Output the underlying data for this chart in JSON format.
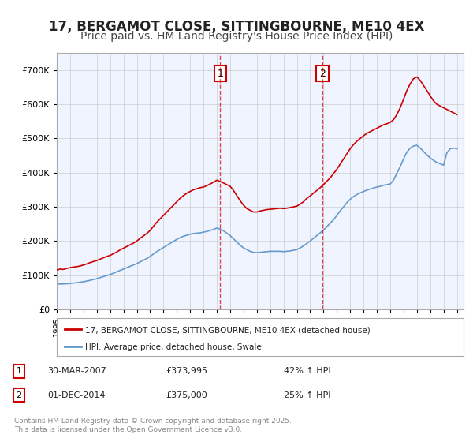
{
  "title": "17, BERGAMOT CLOSE, SITTINGBOURNE, ME10 4EX",
  "subtitle": "Price paid vs. HM Land Registry's House Price Index (HPI)",
  "title_fontsize": 12,
  "subtitle_fontsize": 10,
  "ylabel": "",
  "ylim": [
    0,
    750000
  ],
  "yticks": [
    0,
    100000,
    200000,
    300000,
    400000,
    500000,
    600000,
    700000
  ],
  "ytick_labels": [
    "£0",
    "£100K",
    "£200K",
    "£300K",
    "£400K",
    "£500K",
    "£600K",
    "£700K"
  ],
  "background_color": "#ffffff",
  "plot_bg_color": "#f0f4ff",
  "grid_color": "#cccccc",
  "red_line_color": "#cc0000",
  "blue_line_color": "#6699cc",
  "legend_red_label": "17, BERGAMOT CLOSE, SITTINGBOURNE, ME10 4EX (detached house)",
  "legend_blue_label": "HPI: Average price, detached house, Swale",
  "annotation1_date": "30-MAR-2007",
  "annotation1_price": "£373,995",
  "annotation1_hpi": "42% ↑ HPI",
  "annotation2_date": "01-DEC-2014",
  "annotation2_price": "£375,000",
  "annotation2_hpi": "25% ↑ HPI",
  "vline1_x": 2007.25,
  "vline2_x": 2014.92,
  "footer": "Contains HM Land Registry data © Crown copyright and database right 2025.\nThis data is licensed under the Open Government Licence v3.0.",
  "xmin": 1995,
  "xmax": 2025.5,
  "red_x": [
    1995.0,
    1995.25,
    1995.5,
    1995.75,
    1996.0,
    1996.25,
    1996.5,
    1996.75,
    1997.0,
    1997.25,
    1997.5,
    1997.75,
    1998.0,
    1998.25,
    1998.5,
    1998.75,
    1999.0,
    1999.25,
    1999.5,
    1999.75,
    2000.0,
    2000.25,
    2000.5,
    2000.75,
    2001.0,
    2001.25,
    2001.5,
    2001.75,
    2002.0,
    2002.25,
    2002.5,
    2002.75,
    2003.0,
    2003.25,
    2003.5,
    2003.75,
    2004.0,
    2004.25,
    2004.5,
    2004.75,
    2005.0,
    2005.25,
    2005.5,
    2005.75,
    2006.0,
    2006.25,
    2006.5,
    2006.75,
    2007.0,
    2007.25,
    2007.5,
    2007.75,
    2008.0,
    2008.25,
    2008.5,
    2008.75,
    2009.0,
    2009.25,
    2009.5,
    2009.75,
    2010.0,
    2010.25,
    2010.5,
    2010.75,
    2011.0,
    2011.25,
    2011.5,
    2011.75,
    2012.0,
    2012.25,
    2012.5,
    2012.75,
    2013.0,
    2013.25,
    2013.5,
    2013.75,
    2014.0,
    2014.25,
    2014.5,
    2014.75,
    2015.0,
    2015.25,
    2015.5,
    2015.75,
    2016.0,
    2016.25,
    2016.5,
    2016.75,
    2017.0,
    2017.25,
    2017.5,
    2017.75,
    2018.0,
    2018.25,
    2018.5,
    2018.75,
    2019.0,
    2019.25,
    2019.5,
    2019.75,
    2020.0,
    2020.25,
    2020.5,
    2020.75,
    2021.0,
    2021.25,
    2021.5,
    2021.75,
    2022.0,
    2022.25,
    2022.5,
    2022.75,
    2023.0,
    2023.25,
    2023.5,
    2023.75,
    2024.0,
    2024.25,
    2024.5,
    2024.75,
    2025.0
  ],
  "red_y": [
    115000,
    118000,
    117000,
    120000,
    122000,
    124000,
    125000,
    127000,
    130000,
    133000,
    137000,
    140000,
    143000,
    147000,
    151000,
    155000,
    158000,
    163000,
    168000,
    174000,
    179000,
    184000,
    189000,
    194000,
    200000,
    208000,
    215000,
    222000,
    231000,
    243000,
    255000,
    265000,
    275000,
    285000,
    295000,
    305000,
    315000,
    325000,
    333000,
    340000,
    345000,
    350000,
    353000,
    356000,
    358000,
    362000,
    367000,
    372000,
    378000,
    374000,
    370000,
    365000,
    360000,
    348000,
    333000,
    318000,
    305000,
    295000,
    290000,
    285000,
    285000,
    288000,
    290000,
    292000,
    293000,
    294000,
    295000,
    296000,
    295000,
    296000,
    298000,
    300000,
    302000,
    308000,
    315000,
    325000,
    332000,
    340000,
    348000,
    356000,
    365000,
    375000,
    385000,
    397000,
    410000,
    425000,
    440000,
    455000,
    470000,
    482000,
    492000,
    500000,
    508000,
    515000,
    520000,
    525000,
    530000,
    535000,
    540000,
    543000,
    547000,
    555000,
    570000,
    590000,
    615000,
    640000,
    660000,
    675000,
    680000,
    670000,
    655000,
    640000,
    625000,
    610000,
    600000,
    595000,
    590000,
    585000,
    580000,
    575000,
    570000
  ],
  "blue_x": [
    1995.0,
    1995.25,
    1995.5,
    1995.75,
    1996.0,
    1996.25,
    1996.5,
    1996.75,
    1997.0,
    1997.25,
    1997.5,
    1997.75,
    1998.0,
    1998.25,
    1998.5,
    1998.75,
    1999.0,
    1999.25,
    1999.5,
    1999.75,
    2000.0,
    2000.25,
    2000.5,
    2000.75,
    2001.0,
    2001.25,
    2001.5,
    2001.75,
    2002.0,
    2002.25,
    2002.5,
    2002.75,
    2003.0,
    2003.25,
    2003.5,
    2003.75,
    2004.0,
    2004.25,
    2004.5,
    2004.75,
    2005.0,
    2005.25,
    2005.5,
    2005.75,
    2006.0,
    2006.25,
    2006.5,
    2006.75,
    2007.0,
    2007.25,
    2007.5,
    2007.75,
    2008.0,
    2008.25,
    2008.5,
    2008.75,
    2009.0,
    2009.25,
    2009.5,
    2009.75,
    2010.0,
    2010.25,
    2010.5,
    2010.75,
    2011.0,
    2011.25,
    2011.5,
    2011.75,
    2012.0,
    2012.25,
    2012.5,
    2012.75,
    2013.0,
    2013.25,
    2013.5,
    2013.75,
    2014.0,
    2014.25,
    2014.5,
    2014.75,
    2015.0,
    2015.25,
    2015.5,
    2015.75,
    2016.0,
    2016.25,
    2016.5,
    2016.75,
    2017.0,
    2017.25,
    2017.5,
    2017.75,
    2018.0,
    2018.25,
    2018.5,
    2018.75,
    2019.0,
    2019.25,
    2019.5,
    2019.75,
    2020.0,
    2020.25,
    2020.5,
    2020.75,
    2021.0,
    2021.25,
    2021.5,
    2021.75,
    2022.0,
    2022.25,
    2022.5,
    2022.75,
    2023.0,
    2023.25,
    2023.5,
    2023.75,
    2024.0,
    2024.25,
    2024.5,
    2024.75,
    2025.0
  ],
  "blue_y": [
    75000,
    74000,
    74500,
    75000,
    76000,
    77000,
    78000,
    79500,
    81000,
    83000,
    85000,
    87500,
    90000,
    93000,
    96000,
    99000,
    102000,
    106000,
    110000,
    114000,
    118000,
    122000,
    126000,
    130000,
    134000,
    139000,
    144000,
    149000,
    155000,
    162000,
    169000,
    175000,
    181000,
    187000,
    193000,
    199000,
    205000,
    210000,
    214000,
    217000,
    220000,
    222000,
    223000,
    224000,
    226000,
    228000,
    231000,
    234000,
    238000,
    235000,
    230000,
    223000,
    216000,
    207000,
    197000,
    188000,
    180000,
    175000,
    170000,
    167000,
    166000,
    167000,
    168000,
    169000,
    170000,
    170000,
    170000,
    170000,
    169000,
    170000,
    171000,
    173000,
    175000,
    180000,
    186000,
    193000,
    200000,
    208000,
    216000,
    224000,
    232000,
    242000,
    252000,
    262000,
    275000,
    288000,
    300000,
    312000,
    322000,
    330000,
    336000,
    341000,
    345000,
    349000,
    352000,
    355000,
    358000,
    360000,
    363000,
    365000,
    367000,
    378000,
    398000,
    418000,
    440000,
    460000,
    472000,
    478000,
    480000,
    472000,
    462000,
    452000,
    443000,
    436000,
    430000,
    426000,
    422000,
    458000,
    470000,
    472000,
    470000
  ]
}
